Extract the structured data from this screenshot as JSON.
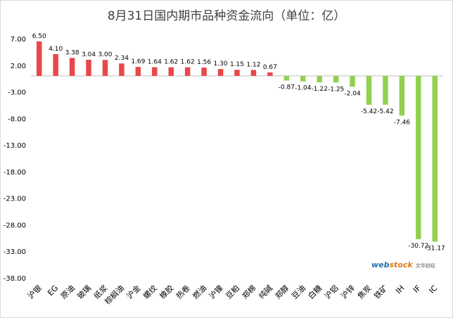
{
  "chart_data": {
    "type": "bar",
    "title": "8月31日国内期市品种资金流向（单位：亿）",
    "xlabel": "",
    "ylabel": "",
    "ylim": [
      -38,
      7
    ],
    "yticks": [
      7,
      2,
      -3,
      -8,
      -13,
      -18,
      -23,
      -28,
      -33,
      -38
    ],
    "ytick_labels": [
      "7.00",
      "2.00",
      "-3.00",
      "-8.00",
      "-13.00",
      "-18.00",
      "-23.00",
      "-28.00",
      "-33.00",
      "-38.00"
    ],
    "grid": false,
    "legend": "none",
    "colors": {
      "positive": "#e8474b",
      "negative": "#92d050",
      "axis": "#bfbfbf",
      "text": "#000000"
    },
    "categories": [
      "沪银",
      "EG",
      "原油",
      "玻璃",
      "纸浆",
      "棕榈油",
      "沪金",
      "螺纹",
      "橡胶",
      "热卷",
      "燃油",
      "沪镍",
      "豆粕",
      "郑棉",
      "纯碱",
      "郑醇",
      "豆油",
      "白糖",
      "沪铝",
      "沪锌",
      "焦炭",
      "铁矿",
      "IH",
      "IF",
      "IC"
    ],
    "values": [
      6.5,
      4.1,
      3.38,
      3.04,
      3.0,
      2.34,
      1.69,
      1.64,
      1.62,
      1.62,
      1.56,
      1.3,
      1.15,
      1.12,
      0.67,
      -0.87,
      -1.04,
      -1.22,
      -1.25,
      -2.04,
      -5.42,
      -5.42,
      -7.46,
      -30.72,
      -31.17
    ],
    "data_labels": [
      "6.50",
      "4.10",
      "3.38",
      "3.04",
      "3.00",
      "2.34",
      "1.69",
      "1.64",
      "1.62",
      "1.62",
      "1.56",
      "1.30",
      "1.15",
      "1.12",
      "0.67",
      "-0.87",
      "-1.04",
      "-1.22",
      "-1.25",
      "-2.04",
      "-5.42",
      "-5.42",
      "-7.46",
      "-30.72",
      "-31.17"
    ]
  },
  "watermark": {
    "brand_web": "web",
    "brand_stock": "stock",
    "brand_cn": "文华财经"
  }
}
